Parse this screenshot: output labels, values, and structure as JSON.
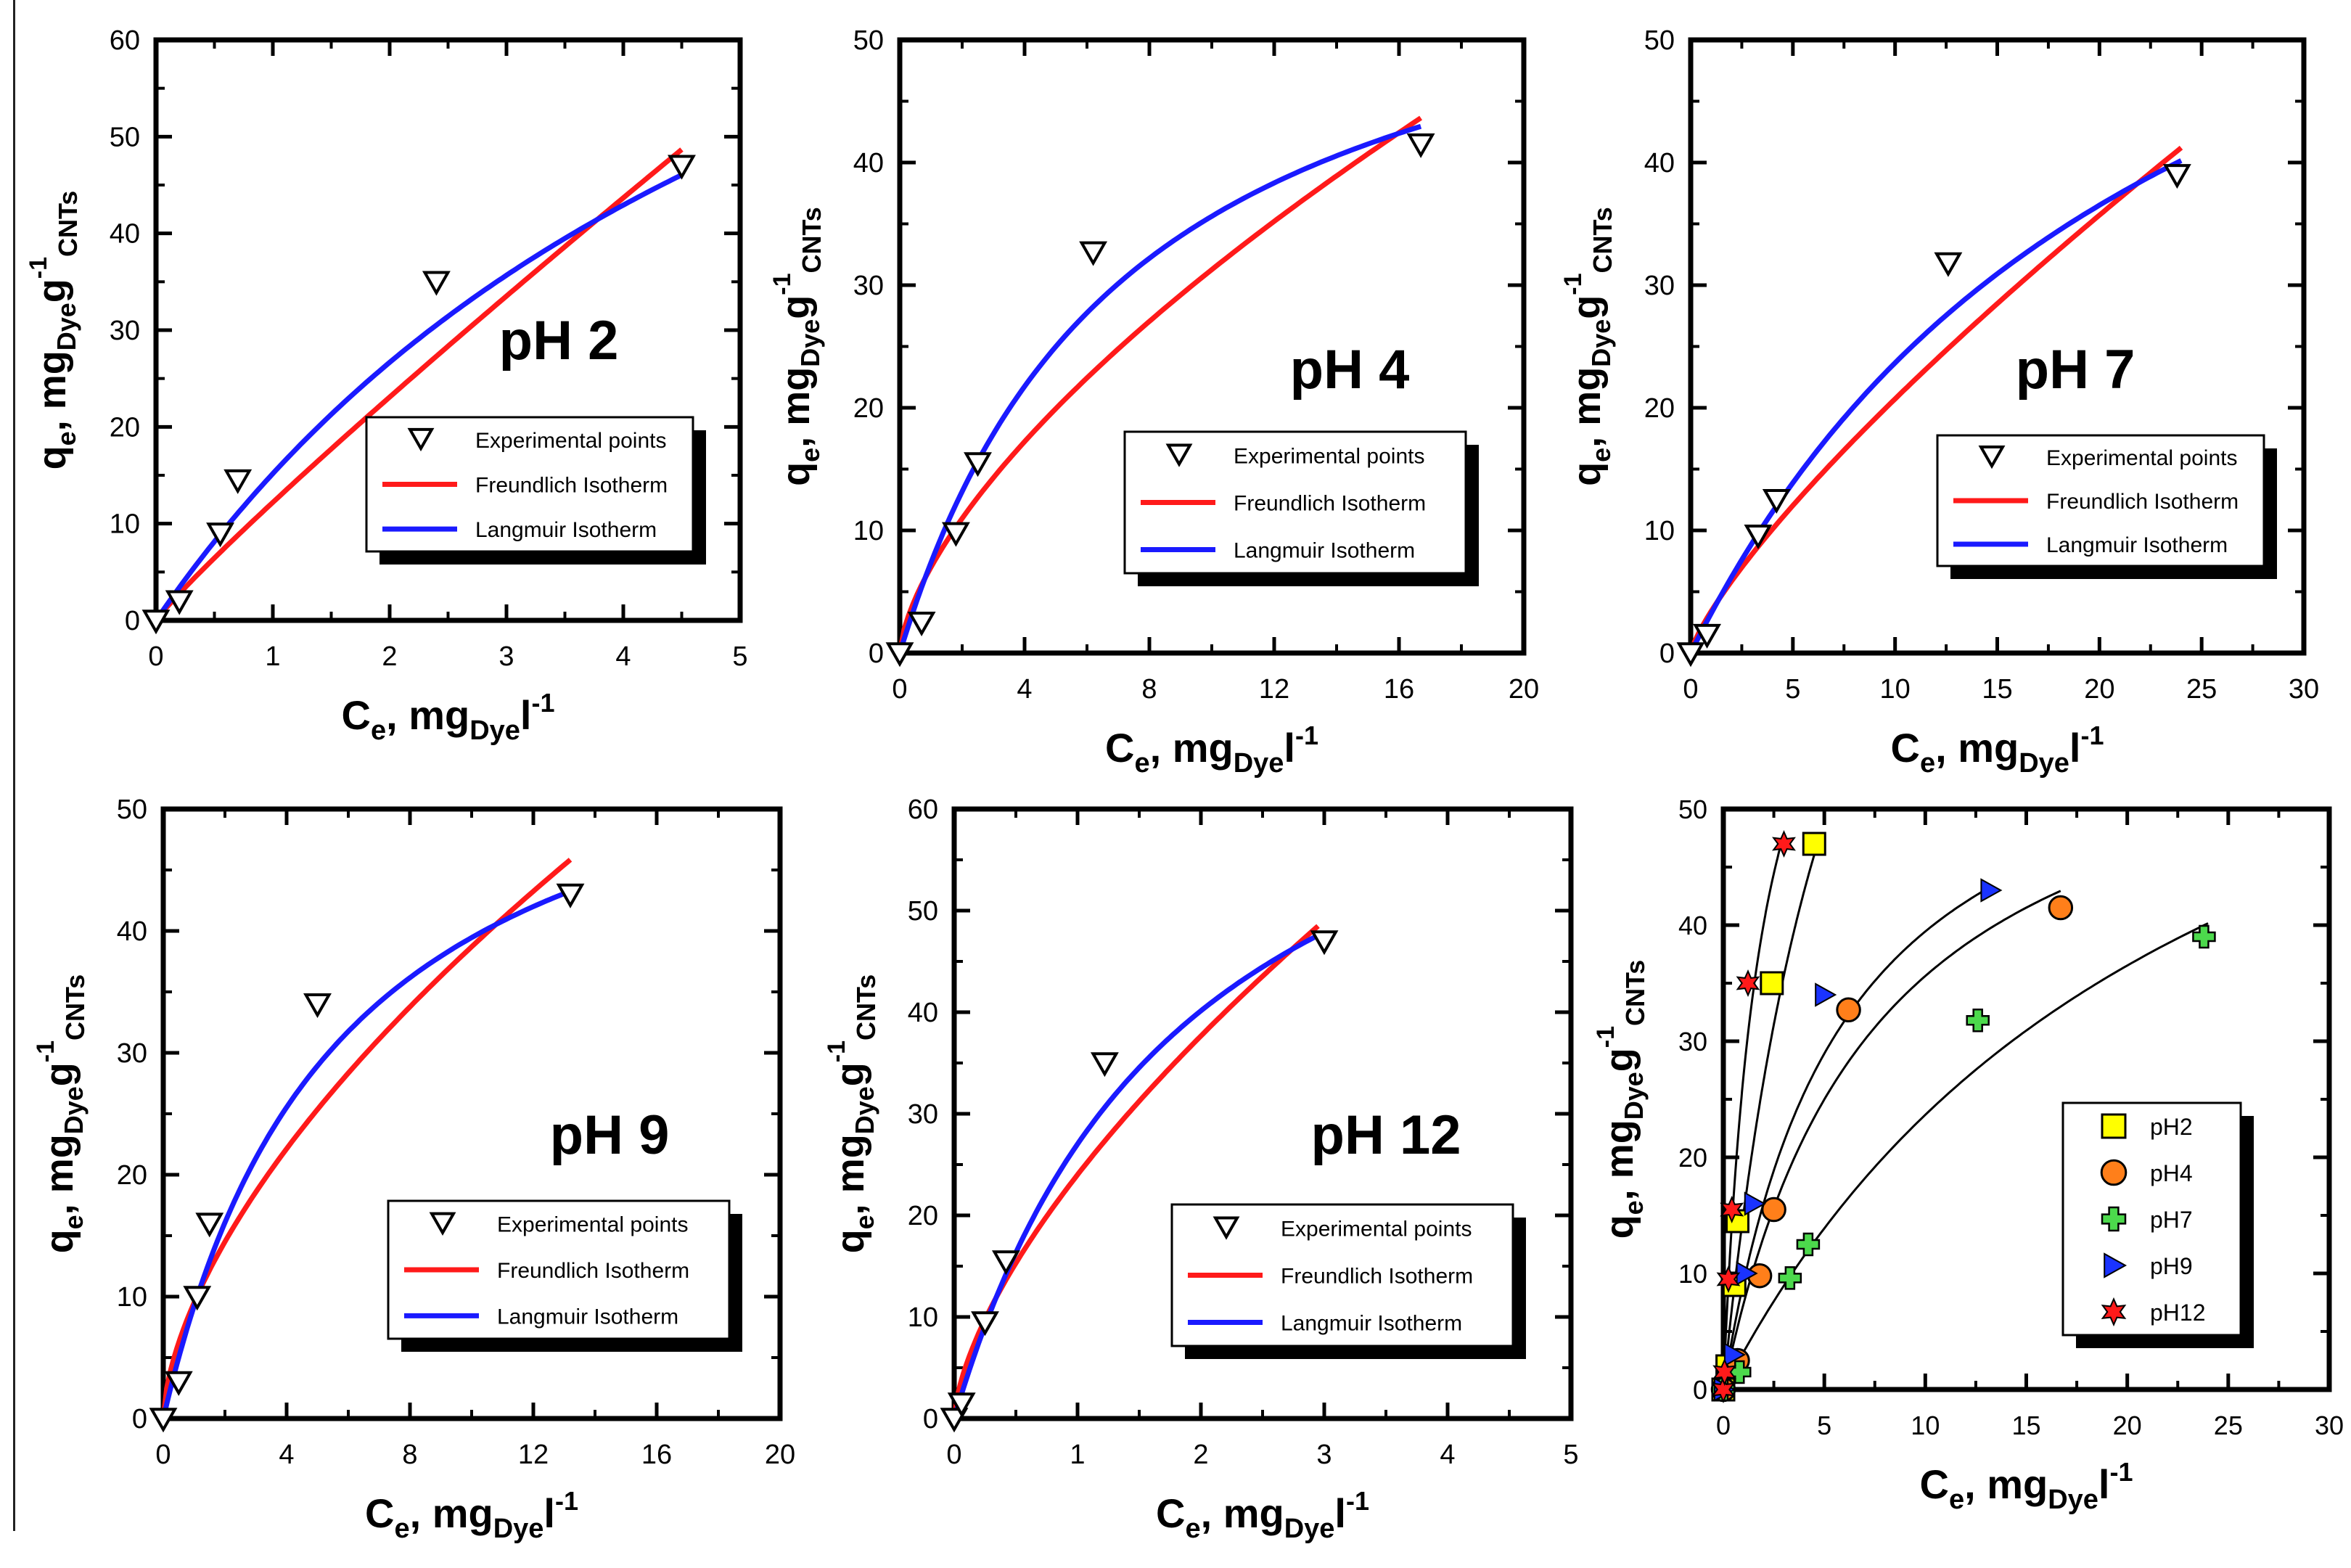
{
  "figure": {
    "legend_labels": {
      "experimental": "Experimental points",
      "freundlich": "Freundlich Isotherm",
      "langmuir": "Langmuir Isotherm"
    },
    "xlabel": {
      "main": "C",
      "sub1": "e",
      "mid": ", mg",
      "sub2": "Dye",
      "end": "l",
      "sup": "-1"
    },
    "ylabel": {
      "main": "q",
      "sub1": "e",
      "mid": ", mg",
      "sub2": "Dye",
      "mid2": "g",
      "sup": "-1",
      "sub3": "CNTs"
    },
    "colors": {
      "freundlich": "#ff1a1a",
      "langmuir": "#1a1aff",
      "axis": "#000000",
      "shadow": "#000000"
    }
  },
  "chart_data": [
    {
      "type": "scatter",
      "title": "pH 2",
      "xlim": [
        0,
        5
      ],
      "ylim": [
        0,
        60
      ],
      "xticks": [
        "0",
        "1",
        "2",
        "3",
        "4",
        "5"
      ],
      "yticks": [
        "0",
        "10",
        "20",
        "30",
        "40",
        "50",
        "60"
      ],
      "experimental": {
        "x": [
          0.0,
          0.2,
          0.55,
          0.7,
          2.4,
          4.5
        ],
        "y": [
          0.0,
          2.0,
          9.0,
          14.5,
          35.0,
          47.0
        ]
      },
      "freundlich": {
        "K": 12.2,
        "n": 0.92,
        "xmax": 4.5
      },
      "langmuir": {
        "qmax": 110,
        "KL": 0.16,
        "xmax": 4.5
      }
    },
    {
      "type": "scatter",
      "title": "pH 4",
      "xlim": [
        0,
        20
      ],
      "ylim": [
        0,
        50
      ],
      "xticks": [
        "0",
        "4",
        "8",
        "12",
        "16",
        "20"
      ],
      "yticks": [
        "0",
        "10",
        "20",
        "30",
        "40",
        "50"
      ],
      "experimental": {
        "x": [
          0.0,
          0.7,
          1.8,
          2.5,
          6.2,
          16.7
        ],
        "y": [
          0.0,
          2.5,
          9.8,
          15.5,
          32.7,
          41.5
        ]
      },
      "freundlich": {
        "K": 7.0,
        "n": 0.65,
        "xmax": 16.7
      },
      "langmuir": {
        "qmax": 62,
        "KL": 0.135,
        "xmax": 16.7
      }
    },
    {
      "type": "scatter",
      "title": "pH 7",
      "xlim": [
        0,
        30
      ],
      "ylim": [
        0,
        50
      ],
      "xticks": [
        "0",
        "5",
        "10",
        "15",
        "20",
        "25",
        "30"
      ],
      "yticks": [
        "0",
        "10",
        "20",
        "30",
        "40",
        "50"
      ],
      "experimental": {
        "x": [
          0.0,
          0.8,
          3.3,
          4.2,
          12.6,
          23.8
        ],
        "y": [
          0.0,
          1.5,
          9.6,
          12.5,
          31.8,
          39.0
        ]
      },
      "freundlich": {
        "K": 3.4,
        "n": 0.785,
        "xmax": 24
      },
      "langmuir": {
        "qmax": 80,
        "KL": 0.042,
        "xmax": 24
      }
    },
    {
      "type": "scatter",
      "title": "pH 9",
      "xlim": [
        0,
        20
      ],
      "ylim": [
        0,
        50
      ],
      "xticks": [
        "0",
        "4",
        "8",
        "12",
        "16",
        "20"
      ],
      "yticks": [
        "0",
        "10",
        "20",
        "30",
        "40",
        "50"
      ],
      "experimental": {
        "x": [
          0.0,
          0.5,
          1.1,
          1.5,
          5.0,
          13.2
        ],
        "y": [
          0.0,
          3.0,
          10.0,
          16.0,
          34.0,
          43.0
        ]
      },
      "freundlich": {
        "K": 9.5,
        "n": 0.61,
        "xmax": 13.2
      },
      "langmuir": {
        "qmax": 62,
        "KL": 0.175,
        "xmax": 13.2
      }
    },
    {
      "type": "scatter",
      "title": "pH 12",
      "xlim": [
        0,
        5
      ],
      "ylim": [
        0,
        60
      ],
      "xticks": [
        "0",
        "1",
        "2",
        "3",
        "4",
        "5"
      ],
      "yticks": [
        "0",
        "10",
        "20",
        "30",
        "40",
        "50",
        "60"
      ],
      "experimental": {
        "x": [
          0.0,
          0.06,
          0.25,
          0.42,
          1.22,
          3.0
        ],
        "y": [
          0.0,
          1.5,
          9.5,
          15.5,
          35.0,
          47.0
        ]
      },
      "freundlich": {
        "K": 24.0,
        "n": 0.65,
        "xmax": 2.95
      },
      "langmuir": {
        "qmax": 78,
        "KL": 0.53,
        "xmax": 2.95
      }
    },
    {
      "type": "scatter",
      "title": "",
      "xlim": [
        0,
        30
      ],
      "ylim": [
        0,
        50
      ],
      "xticks": [
        "0",
        "5",
        "10",
        "15",
        "20",
        "25",
        "30"
      ],
      "yticks": [
        "0",
        "10",
        "20",
        "30",
        "40",
        "50"
      ],
      "series": [
        {
          "name": "pH2",
          "marker": "square",
          "color": "#ffff00",
          "x": [
            0.0,
            0.2,
            0.55,
            0.7,
            2.4,
            4.5
          ],
          "y": [
            0.0,
            2.0,
            9.0,
            14.5,
            35.0,
            47.0
          ],
          "fit": {
            "qmax": 110,
            "KL": 0.16,
            "xmax": 4.5
          }
        },
        {
          "name": "pH4",
          "marker": "circle",
          "color": "#ff7f1a",
          "x": [
            0.0,
            0.7,
            1.8,
            2.5,
            6.2,
            16.7
          ],
          "y": [
            0.0,
            2.5,
            9.8,
            15.5,
            32.7,
            41.5
          ],
          "fit": {
            "qmax": 62,
            "KL": 0.135,
            "xmax": 16.7
          }
        },
        {
          "name": "pH7",
          "marker": "cross",
          "color": "#4cd94c",
          "x": [
            0.0,
            0.8,
            3.3,
            4.2,
            12.6,
            23.8
          ],
          "y": [
            0.0,
            1.5,
            9.6,
            12.5,
            31.8,
            39.0
          ],
          "fit": {
            "qmax": 80,
            "KL": 0.042,
            "xmax": 24
          }
        },
        {
          "name": "pH9",
          "marker": "triangle-right",
          "color": "#1a33ff",
          "x": [
            0.0,
            0.5,
            1.1,
            1.5,
            5.0,
            13.2
          ],
          "y": [
            0.0,
            3.0,
            10.0,
            16.0,
            34.0,
            43.0
          ],
          "fit": {
            "qmax": 62,
            "KL": 0.175,
            "xmax": 13.2
          }
        },
        {
          "name": "pH12",
          "marker": "star",
          "color": "#ff1a1a",
          "x": [
            0.0,
            0.06,
            0.25,
            0.42,
            1.22,
            3.0
          ],
          "y": [
            0.0,
            1.5,
            9.5,
            15.5,
            35.0,
            47.0
          ],
          "fit": {
            "qmax": 78,
            "KL": 0.53,
            "xmax": 3.0
          }
        }
      ]
    }
  ]
}
